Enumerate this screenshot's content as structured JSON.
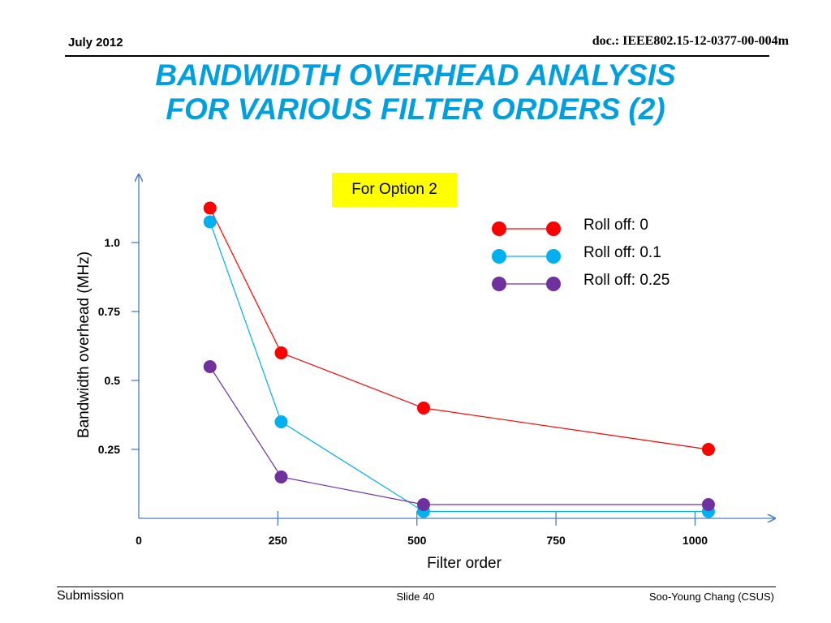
{
  "header": {
    "date": "July 2012",
    "doc_id": "doc.: IEEE802.15-12-0377-00-004m"
  },
  "title": {
    "line1": "BANDWIDTH OVERHEAD ANALYSIS",
    "line2": "FOR VARIOUS FILTER ORDERS (2)"
  },
  "annotation": "For Option 2",
  "colors": {
    "title": "#00a0e0",
    "axis": "#4a7ebf",
    "annotation_bg": "#ffff00"
  },
  "chart_data": {
    "type": "line",
    "xlabel": "Filter order",
    "ylabel": "Bandwidth overhead (MHz)",
    "xlim": [
      0,
      1100
    ],
    "ylim": [
      0,
      1.25
    ],
    "x_ticks": [
      0,
      250,
      500,
      750,
      1000
    ],
    "x_tick_labels": [
      "0",
      "250",
      "500",
      "750",
      "1000"
    ],
    "y_ticks": [
      0.25,
      0.5,
      0.75,
      1.0
    ],
    "y_tick_labels": [
      "0.25",
      "0.5",
      "0.75",
      "1.0"
    ],
    "grid": false,
    "legend_position": "top-right",
    "series": [
      {
        "name": "Roll off: 0",
        "color": "#ff0000",
        "x": [
          128,
          256,
          512,
          1024
        ],
        "values": [
          1.125,
          0.6,
          0.4,
          0.25
        ]
      },
      {
        "name": "Roll off: 0.1",
        "color": "#00b0f0",
        "x": [
          128,
          256,
          512,
          1024
        ],
        "values": [
          1.075,
          0.35,
          0.025,
          0.025
        ]
      },
      {
        "name": "Roll off: 0.25",
        "color": "#7030a0",
        "x": [
          128,
          256,
          512,
          1024
        ],
        "values": [
          0.55,
          0.15,
          0.05,
          0.05
        ]
      }
    ]
  },
  "footer": {
    "left": "Submission",
    "center": "Slide 40",
    "right": "Soo-Young Chang (CSUS)"
  }
}
